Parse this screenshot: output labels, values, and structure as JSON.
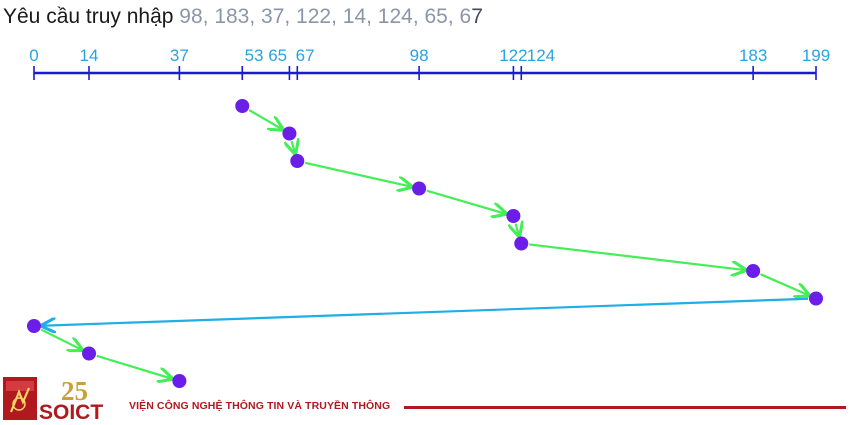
{
  "title": {
    "prefix": "Yêu cầu truy nhập",
    "requests_text": "98, 183, 37, 122, 14, 124, 65, 6",
    "requests_last": "7"
  },
  "axis": {
    "min": 0,
    "max": 199,
    "ticks": [
      0,
      14,
      37,
      53,
      65,
      67,
      98,
      122,
      124,
      183,
      199
    ],
    "labels": [
      {
        "text": "0",
        "value": 0
      },
      {
        "text": "14",
        "value": 14
      },
      {
        "text": "37",
        "value": 37
      },
      {
        "text": "53 65",
        "value": 59
      },
      {
        "text": "67",
        "value": 69
      },
      {
        "text": "98",
        "value": 98
      },
      {
        "text": "122",
        "value": 122
      },
      {
        "text": "124",
        "value": 129
      },
      {
        "text": "183",
        "value": 183
      },
      {
        "text": "199",
        "value": 199
      }
    ]
  },
  "path": {
    "start": 53,
    "sequence": [
      53,
      65,
      67,
      98,
      122,
      124,
      183,
      199,
      0,
      14,
      37
    ],
    "move_colors": {
      "forward": "#44ee55",
      "return": "#1faee6"
    }
  },
  "colors": {
    "axis": "#1a1ad6",
    "node": "#6a1ee8",
    "tick_label": "#28a4e0",
    "brand_red": "#b0191e"
  },
  "footer": {
    "logo_text": "SOICT",
    "anniversary": "25",
    "organization": "VIỆN CÔNG NGHỆ THÔNG TIN VÀ TRUYỀN THÔNG"
  }
}
